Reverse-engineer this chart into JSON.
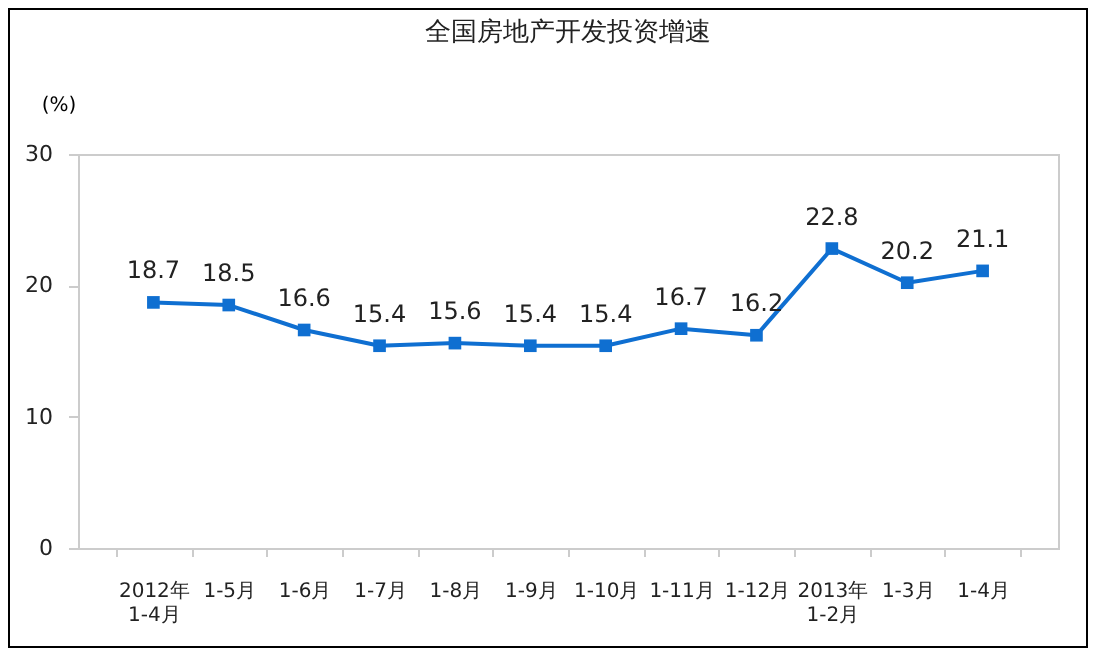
{
  "chart_data": {
    "type": "line",
    "title": "全国房地产开发投资增速",
    "ylabel": "(%)",
    "categories": [
      "2012年\n1-4月",
      "1-5月",
      "1-6月",
      "1-7月",
      "1-8月",
      "1-9月",
      "1-10月",
      "1-11月",
      "1-12月",
      "2013年\n1-2月",
      "1-3月",
      "1-4月"
    ],
    "series": [
      {
        "color": "#0f6fd1",
        "values": [
          18.7,
          18.5,
          16.6,
          15.4,
          15.6,
          15.4,
          15.4,
          16.7,
          16.2,
          22.8,
          20.2,
          21.1
        ]
      }
    ],
    "ylim": [
      0,
      30
    ],
    "yticks": [
      0,
      10,
      20,
      30
    ],
    "grid": false,
    "marker": "square",
    "line_style": "solid",
    "data_labels": true,
    "legend": false
  }
}
